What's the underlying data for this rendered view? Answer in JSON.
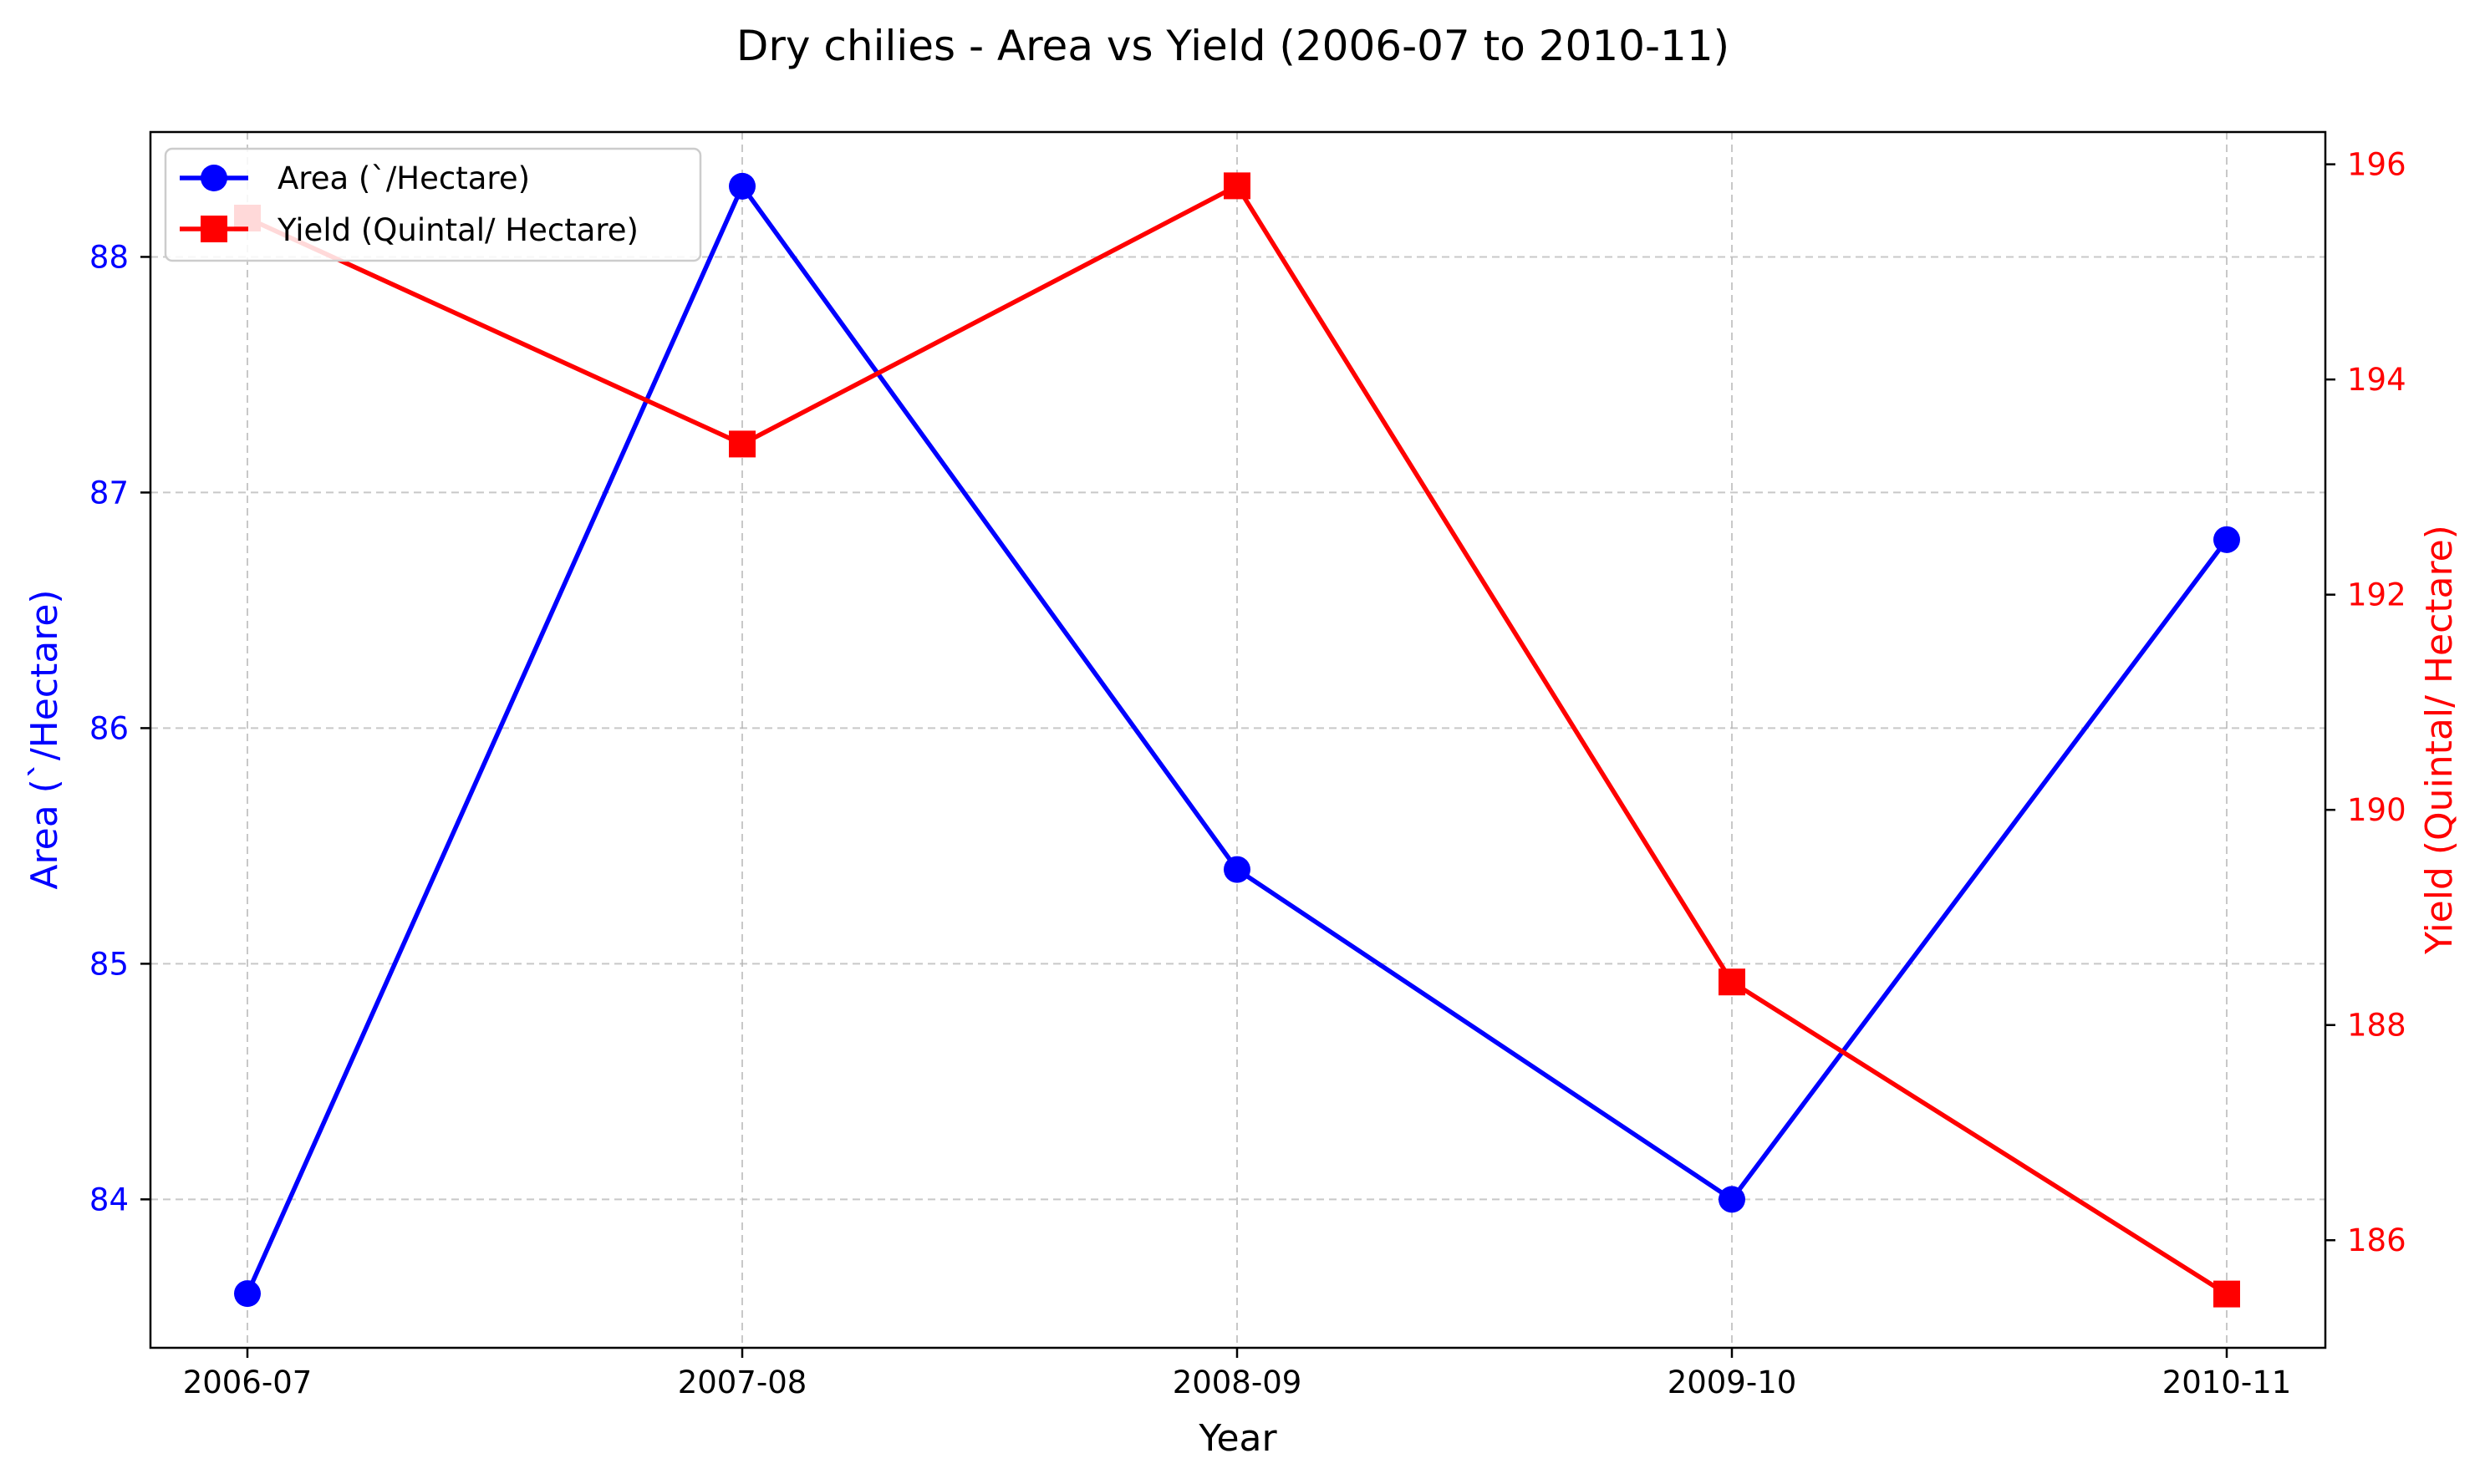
{
  "chart_data": {
    "type": "line",
    "title": "Dry chilies  - Area vs Yield (2006-07 to 2010-11)",
    "xlabel": "Year",
    "ylabel_left": "Area (`/Hectare)",
    "ylabel_right": "Yield (Quintal/ Hectare)",
    "categories": [
      "2006-07",
      "2007-08",
      "2008-09",
      "2009-10",
      "2010-11"
    ],
    "y_left_lim": [
      83.37,
      88.53
    ],
    "y_right_lim": [
      185.0,
      196.3
    ],
    "y_left_ticks": [
      84,
      85,
      86,
      87,
      88
    ],
    "y_right_ticks": [
      186,
      188,
      190,
      192,
      194,
      196
    ],
    "grid": true,
    "legend_position": "upper-left",
    "series": [
      {
        "name": "Area (`/Hectare)",
        "axis": "left",
        "color": "#0000ff",
        "marker": "circle",
        "values": [
          83.6,
          88.3,
          85.4,
          84.0,
          86.8
        ]
      },
      {
        "name": "Yield (Quintal/ Hectare)",
        "axis": "right",
        "color": "#ff0000",
        "marker": "square",
        "values": [
          195.5,
          193.4,
          195.8,
          188.4,
          185.5
        ]
      }
    ]
  }
}
